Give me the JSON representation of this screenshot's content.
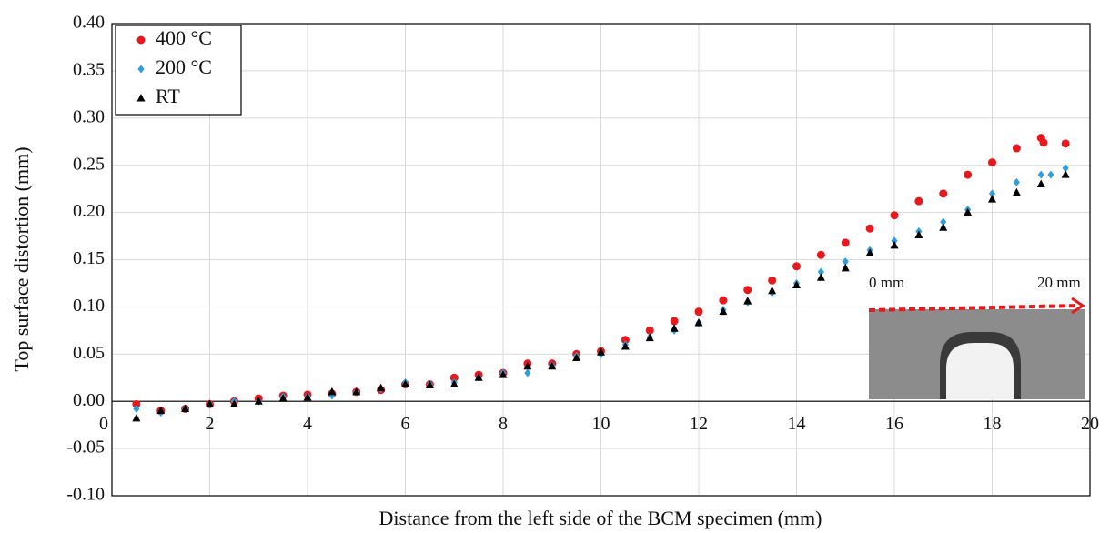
{
  "chart_data": {
    "type": "scatter",
    "x_label": "Distance from the left side of the BCM specimen (mm)",
    "y_label": "Top surface distortion (mm)",
    "xlim": [
      0,
      20
    ],
    "xticks": [
      0,
      2,
      4,
      6,
      8,
      10,
      12,
      14,
      16,
      18,
      20
    ],
    "ylim": [
      -0.1,
      0.4
    ],
    "yticks": [
      {
        "value": -0.1,
        "label": "-0.10"
      },
      {
        "value": -0.05,
        "label": "-0.05"
      },
      {
        "value": 0,
        "label": "0.00"
      },
      {
        "value": 0.05,
        "label": "0.05"
      },
      {
        "value": 0.1,
        "label": "0.10"
      },
      {
        "value": 0.15,
        "label": "0.15"
      },
      {
        "value": 0.2,
        "label": "0.20"
      },
      {
        "value": 0.25,
        "label": "0.25"
      },
      {
        "value": 0.3,
        "label": "0.30"
      },
      {
        "value": 0.35,
        "label": "0.35"
      },
      {
        "value": 0.4,
        "label": "0.40"
      }
    ],
    "grid": true,
    "legend": "top-left",
    "annotations": [
      "0 mm",
      "20 mm"
    ],
    "series": [
      {
        "name": "400 °C",
        "color": "#e8191c",
        "marker": "circle",
        "x": [
          0.5,
          1,
          1.5,
          2,
          2.5,
          3,
          3.5,
          4,
          4.5,
          5,
          5.5,
          6,
          6.5,
          7,
          7.5,
          8,
          8.5,
          9,
          9.5,
          10,
          10.5,
          11,
          11.5,
          12,
          12.5,
          13,
          13.5,
          14,
          14.5,
          15,
          15.5,
          16,
          16.5,
          17,
          17.5,
          18,
          18.5,
          19,
          19.05,
          19.5
        ],
        "values": [
          -0.003,
          -0.01,
          -0.008,
          -0.003,
          0.0,
          0.003,
          0.006,
          0.007,
          0.008,
          0.01,
          0.012,
          0.018,
          0.018,
          0.025,
          0.028,
          0.03,
          0.04,
          0.04,
          0.05,
          0.053,
          0.065,
          0.075,
          0.085,
          0.095,
          0.107,
          0.118,
          0.128,
          0.143,
          0.155,
          0.168,
          0.183,
          0.197,
          0.212,
          0.22,
          0.24,
          0.253,
          0.268,
          0.279,
          0.274,
          0.273
        ]
      },
      {
        "name": "200 °C",
        "color": "#2f9fd8",
        "marker": "diamond",
        "x": [
          0.5,
          1,
          1.5,
          2,
          2.5,
          3,
          3.5,
          4,
          4.5,
          5,
          5.5,
          6,
          6.5,
          7,
          7.5,
          8,
          8.5,
          9,
          9.5,
          10,
          10.5,
          11,
          11.5,
          12,
          12.5,
          13,
          13.5,
          14,
          14.5,
          15,
          15.5,
          16,
          16.5,
          17,
          17.5,
          18,
          18.5,
          19,
          19.2,
          19.5
        ],
        "values": [
          -0.008,
          -0.012,
          -0.008,
          -0.003,
          0.0,
          0.0,
          0.005,
          0.005,
          0.006,
          0.01,
          0.013,
          0.02,
          0.018,
          0.02,
          0.025,
          0.03,
          0.03,
          0.038,
          0.048,
          0.05,
          0.06,
          0.068,
          0.075,
          0.083,
          0.097,
          0.105,
          0.115,
          0.125,
          0.137,
          0.148,
          0.16,
          0.17,
          0.18,
          0.19,
          0.203,
          0.22,
          0.232,
          0.24,
          0.24,
          0.247
        ]
      },
      {
        "name": "RT",
        "color": "#000000",
        "marker": "triangle",
        "x": [
          0.5,
          1,
          1.5,
          2,
          2.5,
          3,
          3.5,
          4,
          4.5,
          5,
          5.5,
          6,
          6.5,
          7,
          7.5,
          8,
          8.5,
          9,
          9.5,
          10,
          10.5,
          11,
          11.5,
          12,
          12.5,
          13,
          13.5,
          14,
          14.5,
          15,
          15.5,
          16,
          16.5,
          17,
          17.5,
          18,
          18.5,
          19,
          19.5
        ],
        "values": [
          -0.018,
          -0.01,
          -0.008,
          -0.003,
          -0.003,
          0.0,
          0.003,
          0.004,
          0.01,
          0.01,
          0.014,
          0.018,
          0.017,
          0.018,
          0.025,
          0.028,
          0.037,
          0.037,
          0.046,
          0.052,
          0.058,
          0.067,
          0.077,
          0.083,
          0.095,
          0.106,
          0.117,
          0.123,
          0.131,
          0.141,
          0.157,
          0.165,
          0.176,
          0.184,
          0.2,
          0.214,
          0.221,
          0.23,
          0.24
        ]
      }
    ]
  }
}
